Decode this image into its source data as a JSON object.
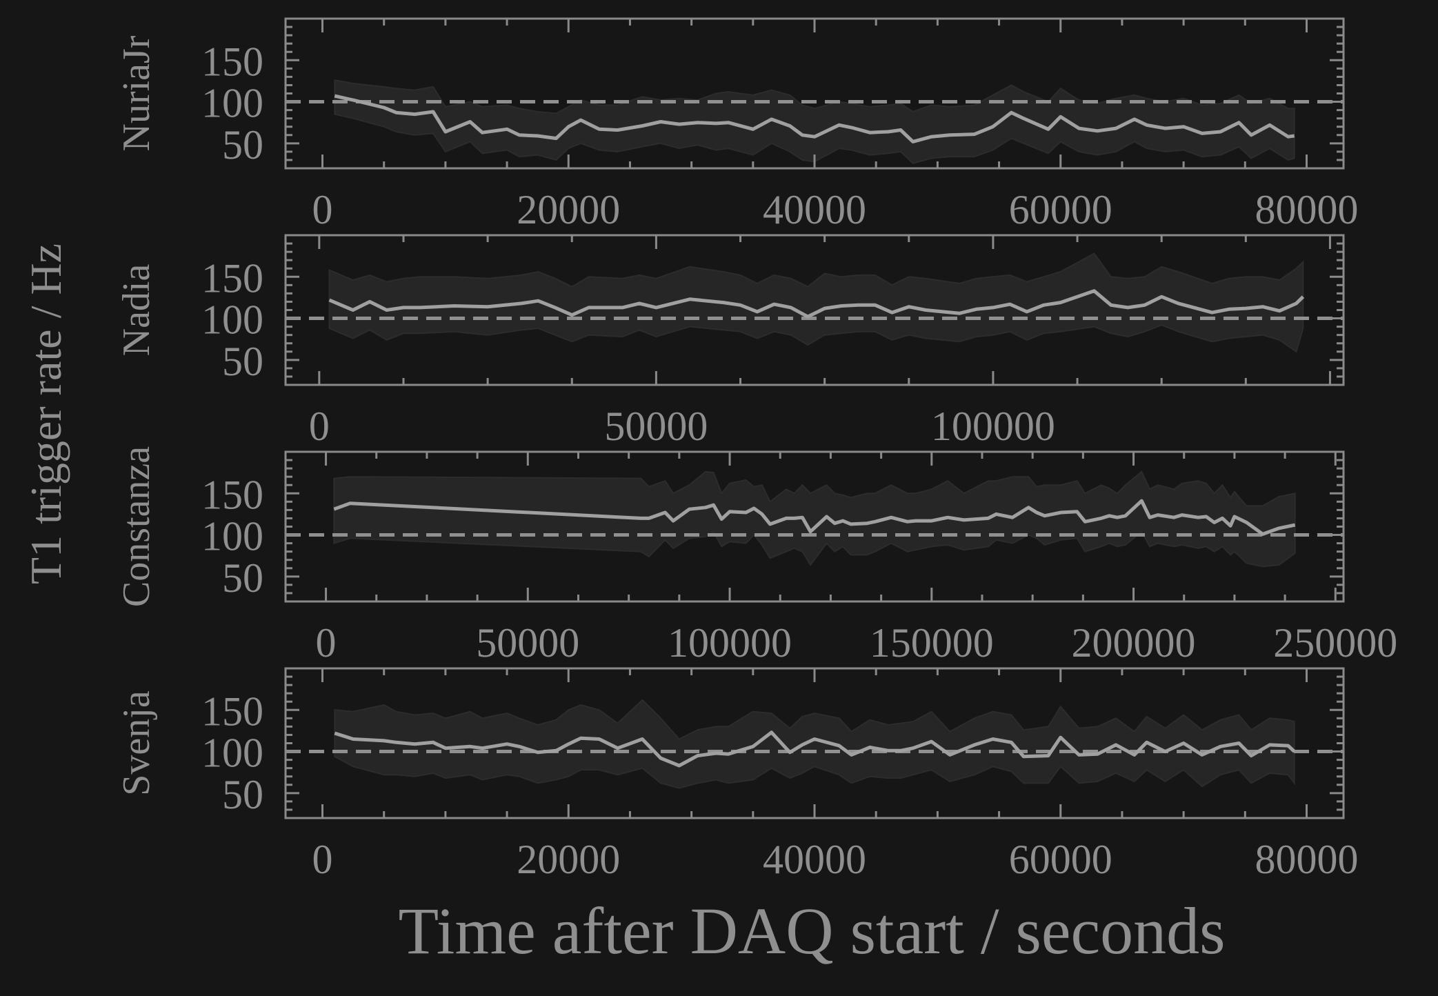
{
  "figure": {
    "ylabel": "T1 trigger rate / Hz",
    "xlabel": "Time after DAQ start / seconds",
    "colors": {
      "background": "#161616",
      "axes": "#8a8a8a",
      "line": "#a0a0a0",
      "band": "#262626",
      "reference": "#909090"
    }
  },
  "chart_data": [
    {
      "type": "line",
      "name": "NuriaJr",
      "xlim": [
        -3000,
        83000
      ],
      "ylim": [
        20,
        200
      ],
      "xticks": [
        0,
        20000,
        40000,
        60000,
        80000
      ],
      "yticks": [
        50,
        100,
        150
      ],
      "reference_y": 100,
      "x": [
        1000,
        2500,
        5000,
        6000,
        7500,
        9000,
        10000,
        12000,
        13000,
        15000,
        16000,
        17500,
        19000,
        20000,
        21000,
        22500,
        24000,
        26000,
        27500,
        29000,
        30500,
        32000,
        33000,
        35000,
        36500,
        38000,
        39000,
        40000,
        42000,
        43000,
        44500,
        46000,
        47000,
        48000,
        49500,
        51000,
        53000,
        54500,
        56000,
        57000,
        59000,
        60000,
        61500,
        63000,
        64500,
        66000,
        67000,
        68500,
        70000,
        71500,
        73000,
        74500,
        75500,
        77000,
        78500,
        79000
      ],
      "values": [
        107,
        102,
        93,
        87,
        85,
        88,
        64,
        76,
        63,
        67,
        60,
        59,
        56,
        70,
        78,
        67,
        66,
        71,
        76,
        73,
        75,
        74,
        75,
        67,
        79,
        71,
        60,
        58,
        72,
        69,
        63,
        64,
        66,
        52,
        58,
        60,
        61,
        70,
        87,
        80,
        67,
        82,
        68,
        65,
        68,
        79,
        72,
        68,
        70,
        62,
        64,
        75,
        60,
        72,
        58,
        59
      ],
      "upper": [
        126,
        122,
        118,
        116,
        114,
        118,
        94,
        100,
        94,
        96,
        92,
        88,
        86,
        94,
        102,
        96,
        96,
        106,
        102,
        104,
        102,
        110,
        112,
        108,
        114,
        108,
        96,
        92,
        100,
        98,
        94,
        96,
        98,
        88,
        96,
        94,
        96,
        108,
        120,
        112,
        100,
        116,
        102,
        98,
        104,
        108,
        104,
        100,
        104,
        96,
        98,
        108,
        98,
        104,
        92,
        92
      ],
      "lower": [
        85,
        80,
        70,
        64,
        60,
        62,
        40,
        52,
        38,
        42,
        34,
        36,
        30,
        44,
        50,
        42,
        40,
        46,
        50,
        44,
        48,
        42,
        44,
        36,
        50,
        40,
        30,
        28,
        44,
        42,
        36,
        38,
        40,
        26,
        32,
        34,
        34,
        42,
        56,
        50,
        38,
        52,
        40,
        36,
        40,
        52,
        44,
        40,
        42,
        34,
        36,
        46,
        32,
        44,
        30,
        32
      ]
    },
    {
      "type": "line",
      "name": "Nadia",
      "xlim": [
        -5000,
        152000
      ],
      "ylim": [
        20,
        200
      ],
      "xticks": [
        0,
        50000,
        100000
      ],
      "yticks": [
        50,
        100,
        150
      ],
      "reference_y": 100,
      "x": [
        1500,
        5000,
        7500,
        10000,
        12500,
        15000,
        20000,
        25000,
        30000,
        32500,
        35000,
        37500,
        40000,
        45000,
        47500,
        50000,
        55000,
        60000,
        62500,
        65000,
        67500,
        70000,
        72500,
        75000,
        77500,
        80000,
        82500,
        85000,
        87500,
        90000,
        95000,
        97500,
        100000,
        102500,
        105000,
        107500,
        110000,
        115000,
        117500,
        120000,
        122500,
        125000,
        127500,
        132500,
        135000,
        137500,
        140000,
        142500,
        145000,
        146000
      ],
      "values": [
        122,
        110,
        120,
        110,
        113,
        113,
        115,
        114,
        118,
        121,
        113,
        104,
        113,
        113,
        118,
        113,
        123,
        119,
        116,
        108,
        117,
        113,
        102,
        112,
        115,
        116,
        116,
        107,
        114,
        110,
        106,
        111,
        113,
        117,
        108,
        116,
        119,
        133,
        116,
        113,
        116,
        126,
        118,
        107,
        111,
        112,
        114,
        109,
        118,
        126
      ],
      "upper": [
        158,
        146,
        152,
        144,
        148,
        150,
        150,
        148,
        152,
        156,
        148,
        138,
        150,
        148,
        152,
        148,
        162,
        156,
        152,
        142,
        152,
        148,
        138,
        154,
        150,
        152,
        152,
        140,
        150,
        148,
        142,
        148,
        150,
        152,
        144,
        150,
        156,
        178,
        150,
        148,
        150,
        162,
        156,
        142,
        148,
        150,
        150,
        146,
        160,
        168
      ],
      "lower": [
        88,
        76,
        86,
        74,
        82,
        82,
        84,
        80,
        86,
        88,
        80,
        72,
        80,
        78,
        86,
        78,
        90,
        86,
        84,
        76,
        84,
        80,
        68,
        80,
        82,
        84,
        84,
        74,
        80,
        76,
        72,
        78,
        80,
        84,
        74,
        82,
        84,
        90,
        82,
        78,
        84,
        92,
        84,
        72,
        76,
        78,
        80,
        74,
        60,
        88
      ]
    },
    {
      "type": "line",
      "name": "Constanza",
      "xlim": [
        -10000,
        252000
      ],
      "ylim": [
        20,
        200
      ],
      "xticks": [
        0,
        50000,
        100000,
        150000,
        200000,
        250000
      ],
      "yticks": [
        50,
        100,
        150
      ],
      "reference_y": 100,
      "x": [
        2000,
        6000,
        78000,
        80000,
        84000,
        86000,
        90000,
        94000,
        96000,
        98000,
        100000,
        104000,
        106000,
        108000,
        110000,
        114000,
        116000,
        118000,
        120000,
        124000,
        126000,
        128000,
        130000,
        134000,
        136000,
        140000,
        144000,
        146000,
        150000,
        154000,
        158000,
        164000,
        166000,
        170000,
        174000,
        176000,
        178000,
        182000,
        186000,
        188000,
        192000,
        194000,
        196000,
        198000,
        202000,
        204000,
        206000,
        210000,
        212000,
        216000,
        218000,
        220000,
        222000,
        224000,
        225000,
        228000,
        232000,
        236000,
        240000
      ],
      "values": [
        131,
        138,
        120,
        120,
        127,
        117,
        131,
        133,
        136,
        119,
        128,
        127,
        132,
        125,
        113,
        120,
        120,
        121,
        104,
        122,
        114,
        117,
        113,
        114,
        116,
        121,
        116,
        117,
        117,
        121,
        118,
        120,
        125,
        121,
        133,
        127,
        123,
        127,
        128,
        116,
        120,
        123,
        121,
        123,
        141,
        121,
        124,
        121,
        124,
        121,
        122,
        115,
        120,
        111,
        122,
        115,
        101,
        108,
        112
      ],
      "upper": [
        168,
        170,
        168,
        158,
        165,
        150,
        160,
        176,
        175,
        150,
        162,
        166,
        158,
        160,
        140,
        155,
        150,
        160,
        150,
        160,
        150,
        148,
        145,
        150,
        150,
        160,
        150,
        150,
        155,
        165,
        150,
        165,
        165,
        170,
        170,
        158,
        160,
        160,
        165,
        150,
        160,
        156,
        150,
        160,
        176,
        155,
        160,
        155,
        162,
        165,
        162,
        150,
        160,
        145,
        152,
        135,
        135,
        146,
        150
      ],
      "lower": [
        90,
        96,
        80,
        74,
        94,
        84,
        96,
        98,
        104,
        86,
        92,
        90,
        100,
        88,
        72,
        80,
        84,
        80,
        64,
        90,
        80,
        86,
        76,
        76,
        80,
        90,
        80,
        82,
        86,
        88,
        82,
        86,
        94,
        90,
        100,
        96,
        88,
        94,
        96,
        80,
        86,
        90,
        86,
        88,
        104,
        86,
        90,
        86,
        88,
        84,
        86,
        80,
        86,
        76,
        80,
        66,
        62,
        64,
        78
      ]
    },
    {
      "type": "line",
      "name": "Svenja",
      "xlim": [
        -3000,
        83000
      ],
      "ylim": [
        20,
        200
      ],
      "xticks": [
        0,
        20000,
        40000,
        60000,
        80000
      ],
      "yticks": [
        50,
        100,
        150
      ],
      "reference_y": 100,
      "x": [
        1000,
        2500,
        5000,
        6000,
        7500,
        9000,
        10000,
        12000,
        13000,
        15000,
        16000,
        17500,
        19000,
        20000,
        21000,
        22500,
        24000,
        26000,
        27500,
        29000,
        30500,
        32000,
        33000,
        35000,
        36500,
        38000,
        39000,
        40000,
        42000,
        43000,
        44500,
        46000,
        47000,
        48000,
        49500,
        51000,
        53000,
        54500,
        56000,
        57000,
        59000,
        60000,
        61500,
        63000,
        64500,
        66000,
        67000,
        68500,
        70000,
        71500,
        73000,
        74500,
        75500,
        77000,
        78500,
        79000
      ],
      "values": [
        122,
        115,
        113,
        111,
        109,
        111,
        104,
        106,
        104,
        109,
        106,
        99,
        101,
        109,
        116,
        115,
        104,
        115,
        92,
        83,
        95,
        98,
        97,
        106,
        123,
        99,
        108,
        115,
        107,
        96,
        105,
        101,
        101,
        104,
        112,
        96,
        108,
        115,
        111,
        94,
        95,
        117,
        96,
        97,
        108,
        96,
        111,
        100,
        110,
        96,
        106,
        110,
        95,
        108,
        107,
        100
      ],
      "upper": [
        150,
        148,
        156,
        148,
        144,
        146,
        140,
        148,
        140,
        146,
        140,
        132,
        138,
        150,
        156,
        150,
        134,
        162,
        140,
        115,
        126,
        130,
        130,
        148,
        146,
        128,
        142,
        146,
        140,
        124,
        138,
        132,
        134,
        136,
        148,
        124,
        140,
        148,
        144,
        126,
        130,
        154,
        128,
        130,
        140,
        124,
        142,
        128,
        144,
        126,
        138,
        144,
        126,
        140,
        138,
        136
      ],
      "lower": [
        94,
        82,
        72,
        72,
        70,
        74,
        68,
        72,
        66,
        72,
        70,
        62,
        66,
        70,
        78,
        78,
        72,
        80,
        62,
        56,
        62,
        66,
        62,
        66,
        80,
        68,
        74,
        82,
        72,
        62,
        70,
        68,
        68,
        72,
        78,
        64,
        72,
        82,
        76,
        62,
        62,
        82,
        62,
        64,
        74,
        64,
        78,
        64,
        78,
        58,
        72,
        78,
        62,
        74,
        72,
        62
      ]
    }
  ]
}
